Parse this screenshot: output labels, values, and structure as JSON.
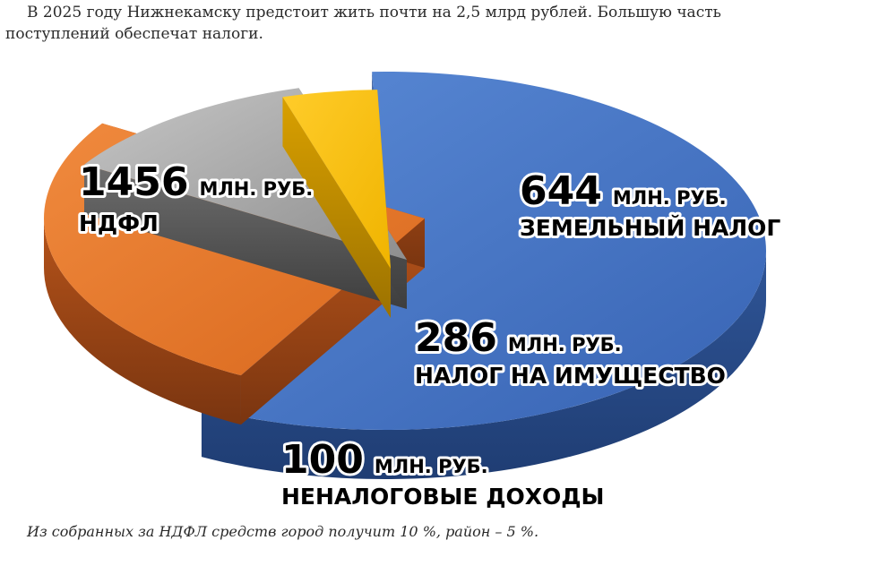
{
  "intro": {
    "line1": "В 2025 году Нижнекамску предстоит жить почти на 2,5 млрд рублей. Большую часть",
    "line2": "поступлений обеспечат налоги."
  },
  "footnote": "Из собранных за НДФЛ средств город получит 10 %, район – 5 %.",
  "chart_data": {
    "type": "pie",
    "title": "",
    "unit": "млн. руб.",
    "slices": [
      {
        "name": "НДФЛ",
        "value": 1456,
        "unit": "млн. руб.",
        "color": "#4472C4"
      },
      {
        "name": "земельный налог",
        "display_name": "ЗЕМЕЛЬНЫЙ НАЛОГ",
        "value": 644,
        "unit": "млн. руб.",
        "color": "#ED7D31"
      },
      {
        "name": "налог на имущество",
        "display_name": "НАЛОГ НА ИМУЩЕСТВО",
        "value": 286,
        "unit": "млн. руб.",
        "color": "#A5A5A5"
      },
      {
        "name": "неналоговые доходы",
        "display_name": "НЕНАЛОГОВЫЕ ДОХОДЫ",
        "value": 100,
        "unit": "млн. руб.",
        "color": "#FFC000"
      }
    ],
    "labels": [
      {
        "value": "1456",
        "unit": "МЛН. РУБ.",
        "name": "НДФЛ"
      },
      {
        "value": "644",
        "unit": "МЛН. РУБ.",
        "name": "ЗЕМЕЛЬНЫЙ НАЛОГ"
      },
      {
        "value": "286",
        "unit": "МЛН. РУБ.",
        "name": "НАЛОГ НА ИМУЩЕСТВО"
      },
      {
        "value": "100",
        "unit": "МЛН. РУБ.",
        "name": "НЕНАЛОГОВЫЕ ДОХОДЫ"
      }
    ],
    "style": "3d-exploded"
  }
}
